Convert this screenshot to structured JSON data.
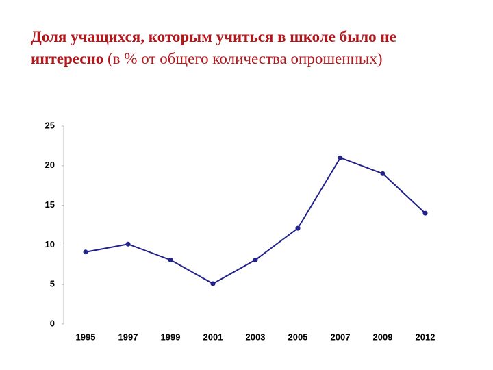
{
  "chart_data": {
    "type": "line",
    "title": "Доля учащихся, которым учиться в школе было не интересно",
    "subtitle": "(в % от общего количества опрошенных)",
    "categories": [
      "1995",
      "1997",
      "1999",
      "2001",
      "2003",
      "2005",
      "2007",
      "2009",
      "2012"
    ],
    "values": [
      9.1,
      10.1,
      8.1,
      5.1,
      8.1,
      12.1,
      21,
      19,
      14
    ],
    "color": "#22228a",
    "ylim": [
      0,
      25
    ],
    "yticks": [
      0,
      5,
      10,
      15,
      20,
      25
    ],
    "grid": false
  }
}
